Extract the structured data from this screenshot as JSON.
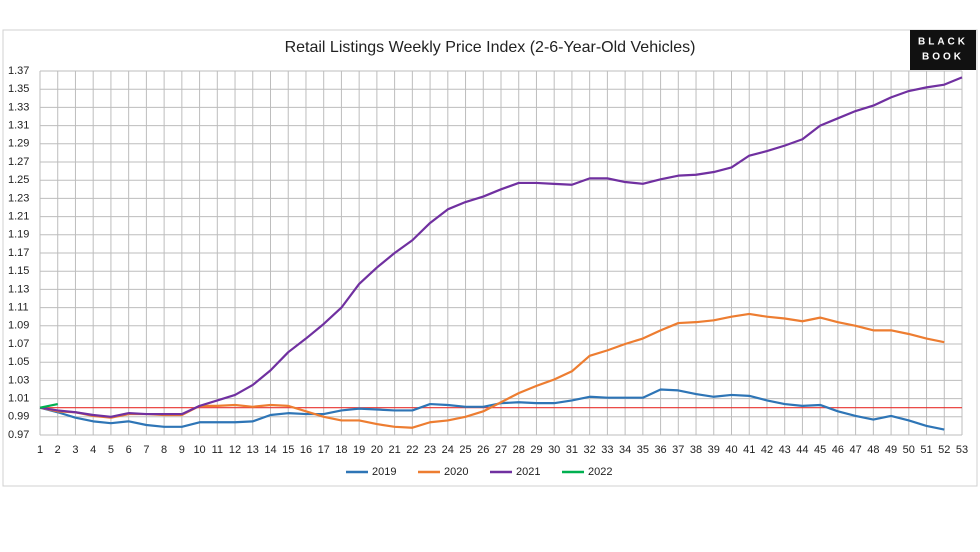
{
  "chart_data": {
    "type": "line",
    "title": "Retail Listings Weekly Price Index (2-6-Year-Old Vehicles)",
    "logo": [
      "BLACK",
      "BOOK"
    ],
    "x": [
      1,
      2,
      3,
      4,
      5,
      6,
      7,
      8,
      9,
      10,
      11,
      12,
      13,
      14,
      15,
      16,
      17,
      18,
      19,
      20,
      21,
      22,
      23,
      24,
      25,
      26,
      27,
      28,
      29,
      30,
      31,
      32,
      33,
      34,
      35,
      36,
      37,
      38,
      39,
      40,
      41,
      42,
      43,
      44,
      45,
      46,
      47,
      48,
      49,
      50,
      51,
      52,
      53
    ],
    "xlim": [
      1,
      53
    ],
    "xticks": [
      1,
      2,
      3,
      4,
      5,
      6,
      7,
      8,
      9,
      10,
      11,
      12,
      13,
      14,
      15,
      16,
      17,
      18,
      19,
      20,
      21,
      22,
      23,
      24,
      25,
      26,
      27,
      28,
      29,
      30,
      31,
      32,
      33,
      34,
      35,
      36,
      37,
      38,
      39,
      40,
      41,
      42,
      43,
      44,
      45,
      46,
      47,
      48,
      49,
      50,
      51,
      52,
      53
    ],
    "ylim": [
      0.97,
      1.37
    ],
    "yticks": [
      0.97,
      0.99,
      1.01,
      1.03,
      1.05,
      1.07,
      1.09,
      1.11,
      1.13,
      1.15,
      1.17,
      1.19,
      1.21,
      1.23,
      1.25,
      1.27,
      1.29,
      1.31,
      1.33,
      1.35,
      1.37
    ],
    "grid": true,
    "reference_line": {
      "value": 1,
      "color": "#e8322f"
    },
    "legend": "bottom",
    "series": [
      {
        "name": "2019",
        "color": "#2e75b6",
        "values": [
          1.0,
          0.995,
          0.989,
          0.985,
          0.983,
          0.985,
          0.981,
          0.979,
          0.979,
          0.984,
          0.984,
          0.984,
          0.985,
          0.992,
          0.994,
          0.993,
          0.993,
          0.997,
          0.999,
          0.998,
          0.997,
          0.997,
          1.004,
          1.003,
          1.001,
          1.001,
          1.005,
          1.006,
          1.005,
          1.005,
          1.008,
          1.012,
          1.011,
          1.011,
          1.011,
          1.02,
          1.019,
          1.015,
          1.012,
          1.014,
          1.013,
          1.008,
          1.004,
          1.002,
          1.003,
          0.996,
          0.991,
          0.987,
          0.991,
          0.986,
          0.98,
          0.976,
          null
        ]
      },
      {
        "name": "2020",
        "color": "#ed7d31",
        "values": [
          1.0,
          0.996,
          0.995,
          0.991,
          0.989,
          0.993,
          0.993,
          0.992,
          0.992,
          1.002,
          1.002,
          1.003,
          1.001,
          1.003,
          1.002,
          0.996,
          0.99,
          0.986,
          0.986,
          0.982,
          0.979,
          0.978,
          0.984,
          0.986,
          0.99,
          0.996,
          1.006,
          1.016,
          1.024,
          1.031,
          1.04,
          1.057,
          1.063,
          1.07,
          1.076,
          1.085,
          1.093,
          1.094,
          1.096,
          1.1,
          1.103,
          1.1,
          1.098,
          1.095,
          1.099,
          1.094,
          1.09,
          1.085,
          1.085,
          1.081,
          1.076,
          1.072,
          null
        ]
      },
      {
        "name": "2021",
        "color": "#7030a0",
        "values": [
          1.0,
          0.997,
          0.995,
          0.992,
          0.99,
          0.994,
          0.993,
          0.993,
          0.993,
          1.002,
          1.008,
          1.014,
          1.025,
          1.041,
          1.061,
          1.076,
          1.092,
          1.11,
          1.136,
          1.154,
          1.17,
          1.184,
          1.203,
          1.218,
          1.226,
          1.232,
          1.24,
          1.247,
          1.247,
          1.246,
          1.245,
          1.252,
          1.252,
          1.248,
          1.246,
          1.251,
          1.255,
          1.256,
          1.259,
          1.264,
          1.277,
          1.282,
          1.288,
          1.295,
          1.31,
          1.318,
          1.326,
          1.332,
          1.341,
          1.348,
          1.352,
          1.355,
          1.363
        ]
      },
      {
        "name": "2022",
        "color": "#00b050",
        "values": [
          1.0,
          1.004,
          null,
          null,
          null,
          null,
          null,
          null,
          null,
          null,
          null,
          null,
          null,
          null,
          null,
          null,
          null,
          null,
          null,
          null,
          null,
          null,
          null,
          null,
          null,
          null,
          null,
          null,
          null,
          null,
          null,
          null,
          null,
          null,
          null,
          null,
          null,
          null,
          null,
          null,
          null,
          null,
          null,
          null,
          null,
          null,
          null,
          null,
          null,
          null,
          null,
          null,
          null
        ]
      }
    ]
  }
}
